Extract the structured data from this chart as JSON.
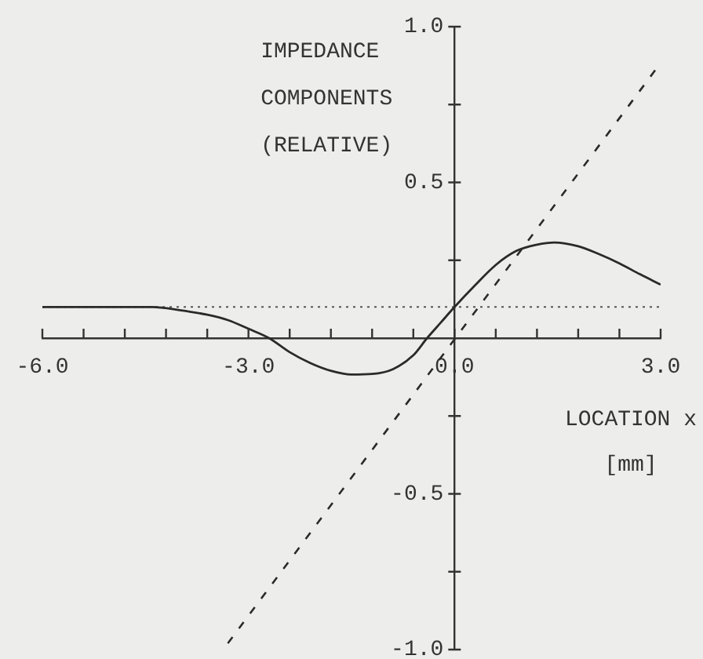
{
  "chart_data": {
    "type": "line",
    "xlabel": "LOCATION x [mm]",
    "ylabel": "IMPEDANCE COMPONENTS (RELATIVE)",
    "xlim": [
      -6,
      3
    ],
    "xticks": [
      {
        "value": -6,
        "label": "-6.0"
      },
      {
        "value": -5.4,
        "label": null
      },
      {
        "value": -4.8,
        "label": null
      },
      {
        "value": -4.2,
        "label": null
      },
      {
        "value": -3.6,
        "label": null
      },
      {
        "value": -3,
        "label": "-3.0"
      },
      {
        "value": -2.4,
        "label": null
      },
      {
        "value": -1.8,
        "label": null
      },
      {
        "value": -1.2,
        "label": null
      },
      {
        "value": -0.6,
        "label": null
      },
      {
        "value": 0,
        "label": "0.0"
      },
      {
        "value": 0.6,
        "label": null
      },
      {
        "value": 1.2,
        "label": null
      },
      {
        "value": 1.8,
        "label": null
      },
      {
        "value": 2.4,
        "label": null
      },
      {
        "value": 3,
        "label": "3.0"
      }
    ],
    "ylim": [
      -1,
      1
    ],
    "yticks": [
      {
        "value": -1,
        "label": "-1.0"
      },
      {
        "value": -0.75,
        "label": null
      },
      {
        "value": -0.5,
        "label": "-0.5"
      },
      {
        "value": -0.25,
        "label": null
      },
      {
        "value": 0.25,
        "label": null
      },
      {
        "value": 0.5,
        "label": "0.5"
      },
      {
        "value": 0.75,
        "label": null
      },
      {
        "value": 1,
        "label": "1.0"
      }
    ],
    "series": [
      {
        "color": "#2a2a2a",
        "line_style": "solid",
        "x": [
          -6,
          -5.4,
          -4.8,
          -4.4,
          -4,
          -3.6,
          -3.3,
          -3,
          -2.7,
          -2.4,
          -2.1,
          -1.8,
          -1.5,
          -1.2,
          -0.9,
          -0.6,
          -0.4,
          -0.2,
          0,
          0.3,
          0.6,
          0.9,
          1.2,
          1.45,
          1.8,
          2.1,
          2.4,
          2.7,
          3
        ],
        "values": [
          0.1,
          0.1,
          0.1,
          0.1,
          0.09,
          0.075,
          0.058,
          0.03,
          0,
          -0.045,
          -0.08,
          -0.105,
          -0.117,
          -0.115,
          -0.1,
          -0.055,
          0,
          0.05,
          0.1,
          0.17,
          0.235,
          0.28,
          0.3,
          0.307,
          0.295,
          0.27,
          0.24,
          0.205,
          0.172
        ]
      },
      {
        "color": "#2a2a2a",
        "line_style": "dashed",
        "x": [
          -3.3,
          2.92
        ],
        "values": [
          -0.98,
          0.86
        ]
      }
    ],
    "ref_lines": [
      {
        "axis": "y",
        "value": 0.1,
        "line_style": "dotted",
        "color": "#555555"
      }
    ]
  }
}
